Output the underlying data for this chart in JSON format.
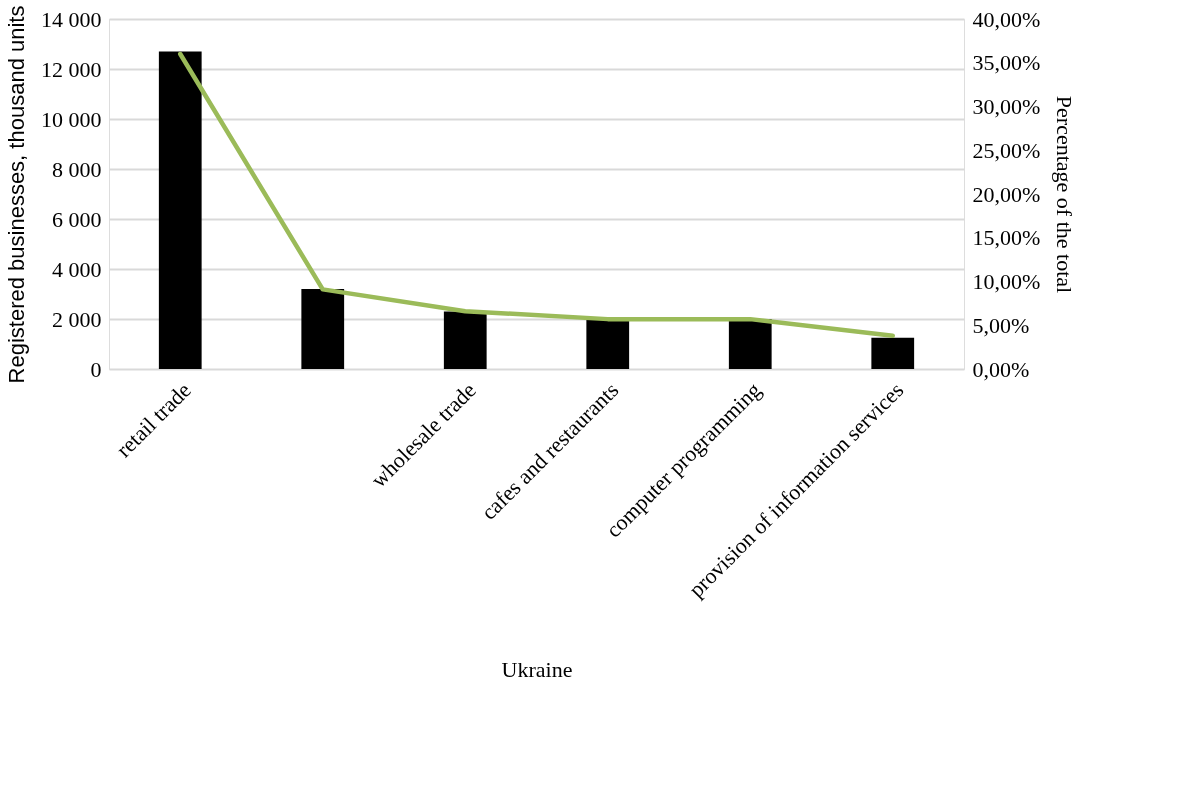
{
  "chart_data": {
    "type": "bar",
    "xlabel": "Ukraine",
    "ylabel": "Registered businesses, thousand units",
    "y2label": "Percentage of the total",
    "categories": [
      "retail trade",
      null,
      "wholesale trade",
      "cafes and restaurants",
      "computer programming",
      "provision of information services"
    ],
    "series": [
      {
        "color": "#000000",
        "values": [
          12700,
          3200,
          2300,
          2000,
          2000,
          1250
        ]
      },
      {
        "type": "line",
        "axis": "y2",
        "color": "#9bbb59",
        "values": [
          36.0,
          9.1,
          6.6,
          5.7,
          5.7,
          3.8
        ]
      }
    ],
    "ylim": [
      0,
      14000
    ],
    "yticks": [
      0,
      {
        "value": 2000,
        "label": "2 000"
      },
      {
        "value": 4000,
        "label": "4 000"
      },
      {
        "value": 6000,
        "label": "6 000"
      },
      {
        "value": 8000,
        "label": "8 000"
      },
      {
        "value": 10000,
        "label": "10 000"
      },
      {
        "value": 12000,
        "label": "12 000"
      },
      {
        "value": 14000,
        "label": "14 000"
      }
    ],
    "y2lim": [
      0,
      40
    ],
    "y2ticks": [
      {
        "value": 0,
        "label": "0,00%"
      },
      {
        "value": 5,
        "label": "5,00%"
      },
      {
        "value": 10,
        "label": "10,00%"
      },
      {
        "value": 15,
        "label": "15,00%"
      },
      {
        "value": 20,
        "label": "20,00%"
      },
      {
        "value": 25,
        "label": "25,00%"
      },
      {
        "value": 30,
        "label": "30,00%"
      },
      {
        "value": 35,
        "label": "35,00%"
      },
      {
        "value": 40,
        "label": "40,00%"
      }
    ],
    "grid": "y",
    "line_style": "solid",
    "marker": "none"
  }
}
